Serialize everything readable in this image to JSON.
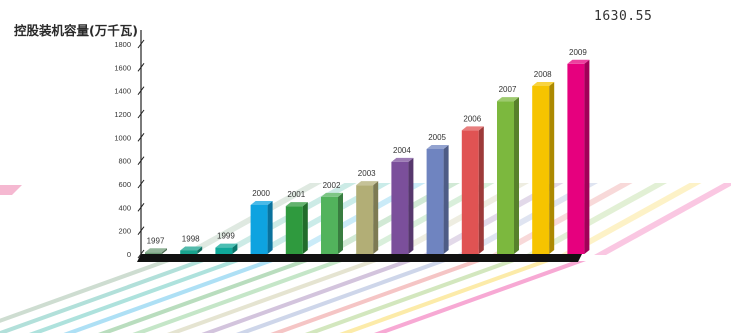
{
  "chart_title": "控股装机容量(万千瓦)",
  "peak_label": "1630.55",
  "chart_data": {
    "type": "bar",
    "title": "控股装机容量(万千瓦)",
    "xlabel": "",
    "ylabel": "",
    "ylim": [
      0,
      1800
    ],
    "yticks": [
      0,
      200,
      400,
      600,
      800,
      1000,
      1200,
      1400,
      1600,
      1800
    ],
    "grid": false,
    "categories": [
      "1997",
      "1998",
      "1999",
      "2000",
      "2001",
      "2002",
      "2003",
      "2004",
      "2005",
      "2006",
      "2007",
      "2008",
      "2009"
    ],
    "values": [
      15,
      30,
      55,
      420,
      410,
      490,
      590,
      790,
      900,
      1060,
      1310,
      1440,
      1630.55
    ],
    "colors": [
      "#6f9c78",
      "#1aa38f",
      "#10a89a",
      "#0ea3e0",
      "#2f9a3e",
      "#52b35c",
      "#b2ae76",
      "#7b4f9b",
      "#6f84c0",
      "#e05353",
      "#7cb83e",
      "#f6c400",
      "#e6007e"
    ]
  }
}
